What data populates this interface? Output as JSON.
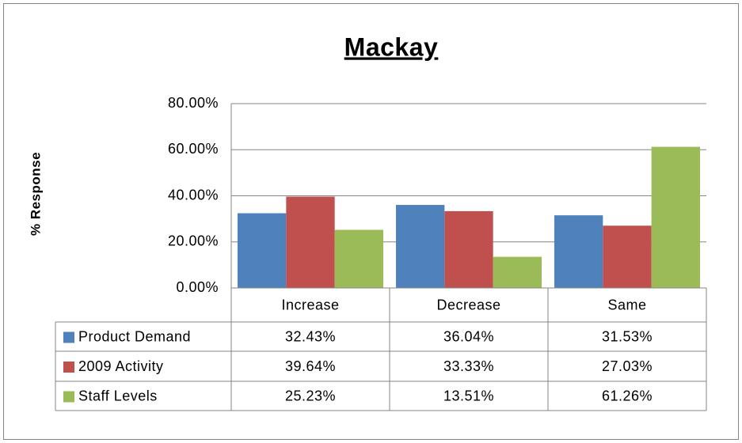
{
  "chart_data": {
    "type": "bar",
    "title": "Mackay",
    "y_label": "% Response",
    "categories": [
      "Increase",
      "Decrease",
      "Same"
    ],
    "series": [
      {
        "name": "Product Demand",
        "color": "#4f81bd",
        "values": [
          32.43,
          36.04,
          31.53
        ],
        "value_labels": [
          "32.43%",
          "36.04%",
          "31.53%"
        ]
      },
      {
        "name": "2009 Activity",
        "color": "#c0504d",
        "values": [
          39.64,
          33.33,
          27.03
        ],
        "value_labels": [
          "39.64%",
          "33.33%",
          "27.03%"
        ]
      },
      {
        "name": "Staff Levels",
        "color": "#9bbb59",
        "values": [
          25.23,
          13.51,
          61.26
        ],
        "value_labels": [
          "25.23%",
          "13.51%",
          "61.26%"
        ]
      }
    ],
    "ylim": [
      0,
      80
    ],
    "yticks": [
      {
        "value": 0,
        "label": "0.00%"
      },
      {
        "value": 20,
        "label": "20.00%"
      },
      {
        "value": 40,
        "label": "40.00%"
      },
      {
        "value": 60,
        "label": "60.00%"
      },
      {
        "value": 80,
        "label": "80.00%"
      }
    ],
    "grid": true,
    "data_table": true
  }
}
